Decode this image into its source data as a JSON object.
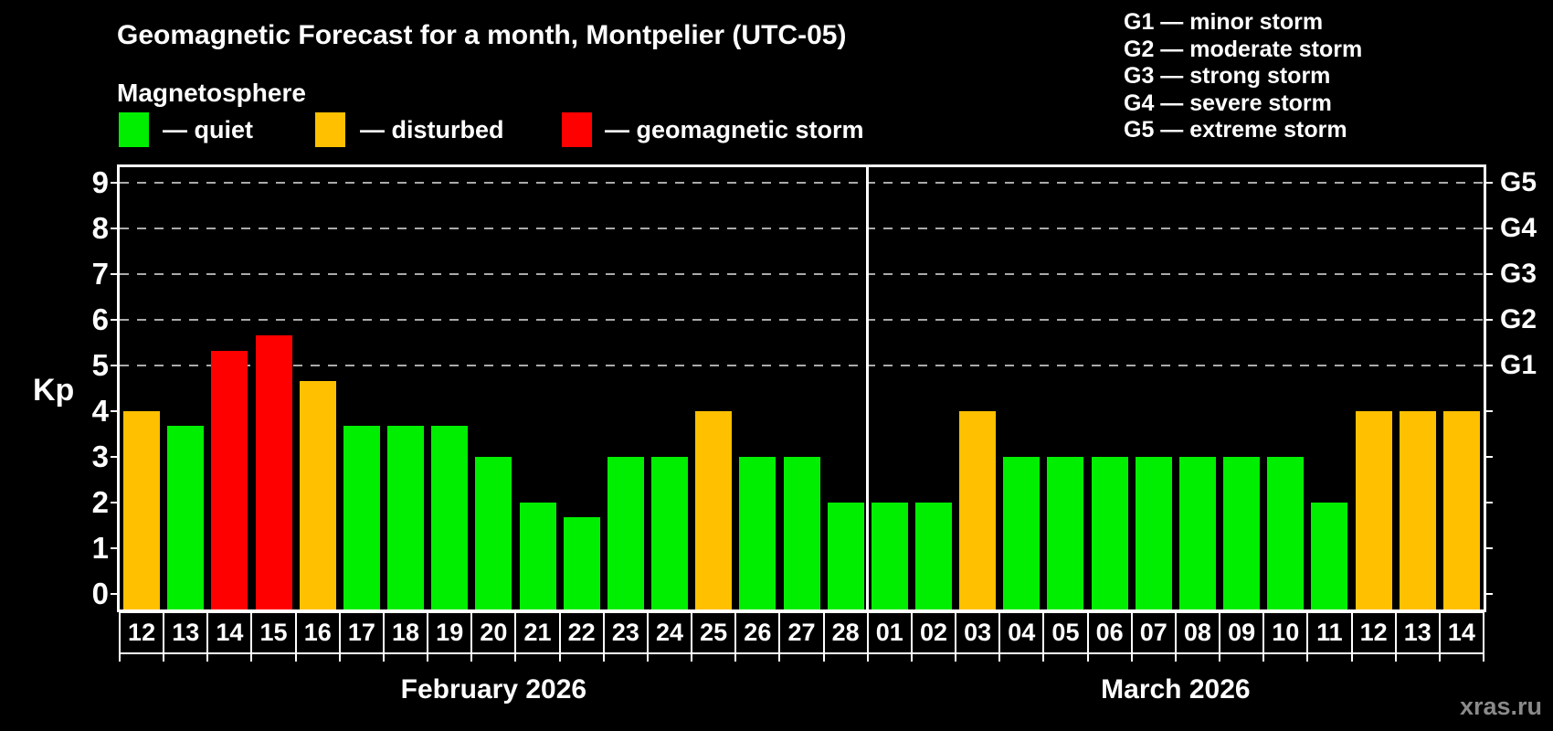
{
  "watermark": "xras.ru",
  "colors": {
    "background": "#000000",
    "axis": "#ffffff",
    "grid": "#aaaaaa",
    "quiet": "#00ee00",
    "disturbed": "#ffc000",
    "storm": "#ff0000",
    "watermark_text": "#8a8a8a"
  },
  "chart_data": {
    "type": "bar",
    "title": "Geomagnetic Forecast for a month, Montpelier (UTC-05)",
    "subtitle": "Magnetosphere",
    "ylabel": "Kp",
    "ylim": [
      -0.35,
      9.35
    ],
    "y_ticks": [
      "0",
      "1",
      "2",
      "3",
      "4",
      "5",
      "6",
      "7",
      "8",
      "9"
    ],
    "gridlines_at": [
      5,
      6,
      7,
      8,
      9
    ],
    "grid": "horizontal dashed lines at storm levels G1-G5 only",
    "legend_position": "top-left",
    "legend": [
      {
        "key": "quiet",
        "label": "— quiet",
        "color": "#00ee00"
      },
      {
        "key": "disturbed",
        "label": "— disturbed",
        "color": "#ffc000"
      },
      {
        "key": "storm",
        "label": "— geomagnetic storm",
        "color": "#ff0000"
      }
    ],
    "g_scale": [
      {
        "label": "G1",
        "kp": 5,
        "description": "G1 — minor storm"
      },
      {
        "label": "G2",
        "kp": 6,
        "description": "G2 — moderate storm"
      },
      {
        "label": "G3",
        "kp": 7,
        "description": "G3 — strong storm"
      },
      {
        "label": "G4",
        "kp": 8,
        "description": "G4 — severe storm"
      },
      {
        "label": "G5",
        "kp": 9,
        "description": "G5 — extreme storm"
      }
    ],
    "months": [
      {
        "label": "February 2026",
        "days": 17
      },
      {
        "label": "March 2026",
        "days": 14
      }
    ],
    "bars": [
      {
        "day": "12",
        "kp": 4.0,
        "level": "disturbed"
      },
      {
        "day": "13",
        "kp": 3.67,
        "level": "quiet"
      },
      {
        "day": "14",
        "kp": 5.33,
        "level": "storm"
      },
      {
        "day": "15",
        "kp": 5.67,
        "level": "storm"
      },
      {
        "day": "16",
        "kp": 4.67,
        "level": "disturbed"
      },
      {
        "day": "17",
        "kp": 3.67,
        "level": "quiet"
      },
      {
        "day": "18",
        "kp": 3.67,
        "level": "quiet"
      },
      {
        "day": "19",
        "kp": 3.67,
        "level": "quiet"
      },
      {
        "day": "20",
        "kp": 3.0,
        "level": "quiet"
      },
      {
        "day": "21",
        "kp": 2.0,
        "level": "quiet"
      },
      {
        "day": "22",
        "kp": 1.67,
        "level": "quiet"
      },
      {
        "day": "23",
        "kp": 3.0,
        "level": "quiet"
      },
      {
        "day": "24",
        "kp": 3.0,
        "level": "quiet"
      },
      {
        "day": "25",
        "kp": 4.0,
        "level": "disturbed"
      },
      {
        "day": "26",
        "kp": 3.0,
        "level": "quiet"
      },
      {
        "day": "27",
        "kp": 3.0,
        "level": "quiet"
      },
      {
        "day": "28",
        "kp": 2.0,
        "level": "quiet"
      },
      {
        "day": "01",
        "kp": 2.0,
        "level": "quiet"
      },
      {
        "day": "02",
        "kp": 2.0,
        "level": "quiet"
      },
      {
        "day": "03",
        "kp": 4.0,
        "level": "disturbed"
      },
      {
        "day": "04",
        "kp": 3.0,
        "level": "quiet"
      },
      {
        "day": "05",
        "kp": 3.0,
        "level": "quiet"
      },
      {
        "day": "06",
        "kp": 3.0,
        "level": "quiet"
      },
      {
        "day": "07",
        "kp": 3.0,
        "level": "quiet"
      },
      {
        "day": "08",
        "kp": 3.0,
        "level": "quiet"
      },
      {
        "day": "09",
        "kp": 3.0,
        "level": "quiet"
      },
      {
        "day": "10",
        "kp": 3.0,
        "level": "quiet"
      },
      {
        "day": "11",
        "kp": 2.0,
        "level": "quiet"
      },
      {
        "day": "12",
        "kp": 4.0,
        "level": "disturbed"
      },
      {
        "day": "13",
        "kp": 4.0,
        "level": "disturbed"
      },
      {
        "day": "14",
        "kp": 4.0,
        "level": "disturbed"
      }
    ]
  }
}
